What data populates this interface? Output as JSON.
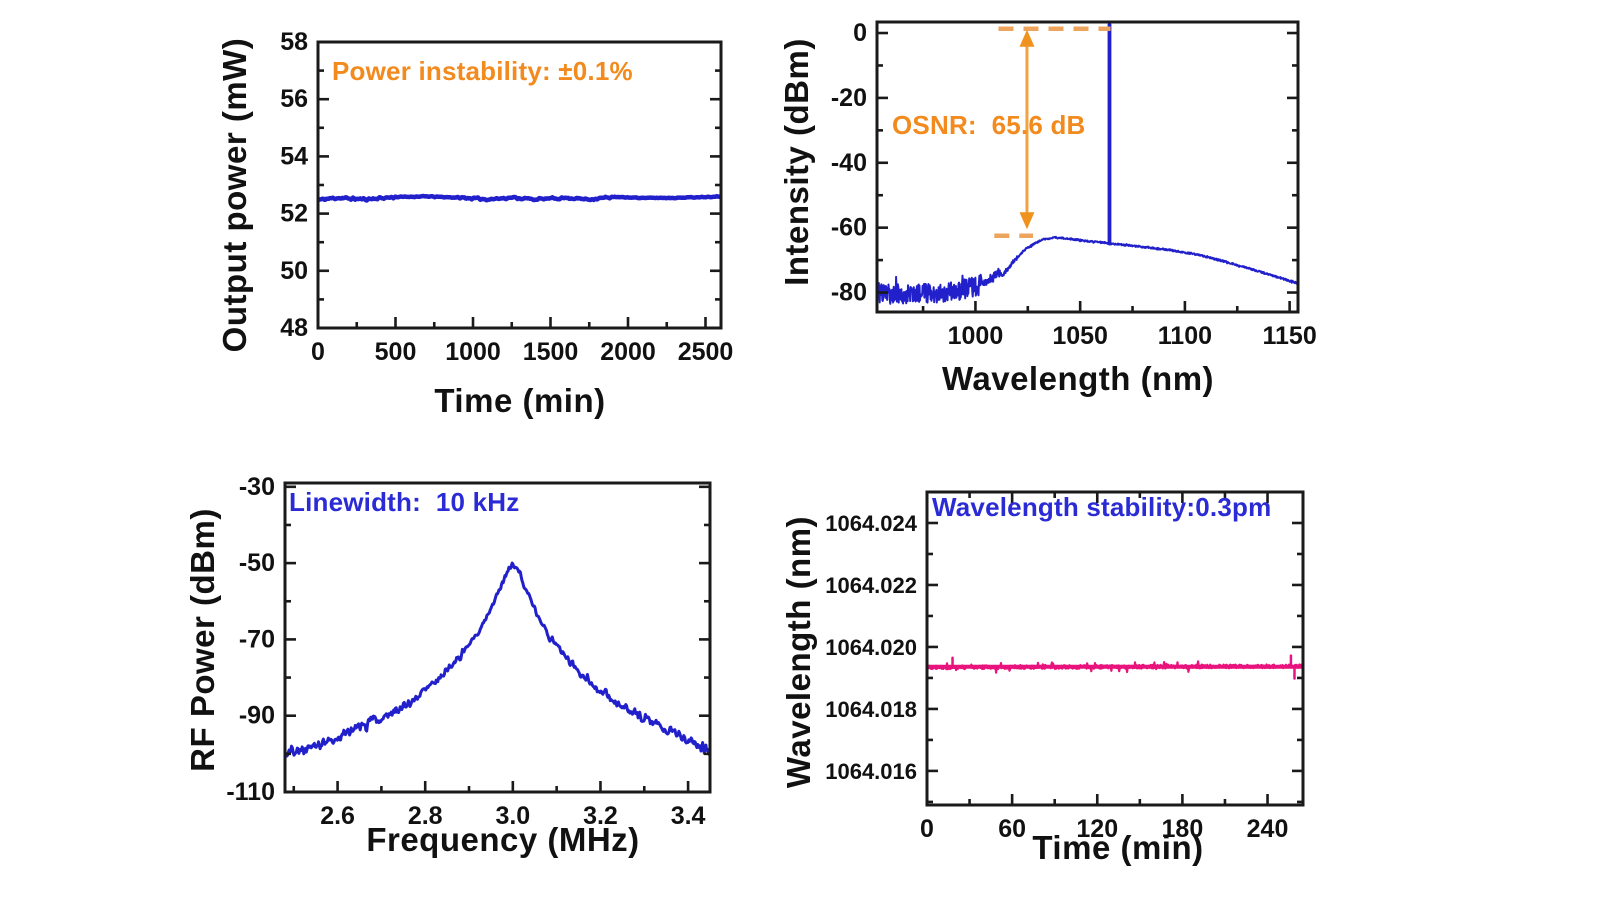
{
  "figure": {
    "background": "#ffffff",
    "frame_color": "#1a1a1a",
    "tick_label_color": "#111111"
  },
  "chart_data": [
    {
      "id": "output-power-stability",
      "type": "line",
      "xlabel": "Time (min)",
      "ylabel": "Output power (mW)",
      "annotation": {
        "text": "Power instability: ±0.1%",
        "color": "#f28a1d"
      },
      "xlim": [
        0,
        2600
      ],
      "ylim": [
        48,
        58
      ],
      "xticks": [
        0,
        500,
        1000,
        1500,
        2000,
        2500
      ],
      "xtick_labels": [
        "0",
        "500",
        "1000",
        "1500",
        "2000",
        "2500"
      ],
      "yticks": [
        48,
        50,
        52,
        54,
        56,
        58
      ],
      "ytick_labels": [
        "48",
        "50",
        "52",
        "54",
        "56",
        "58"
      ],
      "x_minor_step": 250,
      "y_minor_step": 1,
      "series": [
        {
          "name": "output-power",
          "color": "#2120cb",
          "width": 4.5,
          "seed": 11,
          "samples": 380,
          "smooth": true,
          "anchors": [
            [
              0,
              52.48
            ],
            [
              120,
              52.55
            ],
            [
              300,
              52.5
            ],
            [
              500,
              52.58
            ],
            [
              700,
              52.6
            ],
            [
              950,
              52.55
            ],
            [
              1100,
              52.5
            ],
            [
              1250,
              52.56
            ],
            [
              1400,
              52.5
            ],
            [
              1600,
              52.55
            ],
            [
              1750,
              52.5
            ],
            [
              1900,
              52.58
            ],
            [
              2100,
              52.55
            ],
            [
              2300,
              52.55
            ],
            [
              2600,
              52.6
            ]
          ],
          "noise_zones": [
            {
              "to_x": 500,
              "amp": 0.055
            },
            {
              "to_x": 900,
              "amp": 0.02
            },
            {
              "to_x": 1900,
              "amp": 0.045
            },
            {
              "to_x": 2600,
              "amp": 0.015
            }
          ]
        }
      ]
    },
    {
      "id": "optical-spectrum-osnr",
      "type": "line",
      "xlabel": "Wavelength (nm)",
      "ylabel": "Intensity (dBm)",
      "annotation": {
        "text": "OSNR:  65.6 dB",
        "color": "#f28a1d"
      },
      "xlim": [
        953,
        1154
      ],
      "ylim": [
        -86,
        3.4
      ],
      "xticks": [
        1000,
        1050,
        1100,
        1150
      ],
      "xtick_labels": [
        "1000",
        "1050",
        "1100",
        "1150"
      ],
      "yticks": [
        0,
        -20,
        -40,
        -60,
        -80
      ],
      "ytick_labels": [
        "0",
        "-20",
        "-40",
        "-60",
        "-80"
      ],
      "x_minor_step": 25,
      "y_minor_step": 10,
      "series": [
        {
          "name": "ase-spectrum",
          "color": "#2120cb",
          "width": 2,
          "seed": 23,
          "samples": 950,
          "smooth": false,
          "spike_prob": 0.06,
          "spike_mult": 1.7,
          "anchors": [
            [
              953,
              -80.5
            ],
            [
              970,
              -80.3
            ],
            [
              990,
              -79.8
            ],
            [
              1003,
              -77.5
            ],
            [
              1008,
              -75.5
            ],
            [
              1011,
              -73.5
            ],
            [
              1013,
              -74.8
            ],
            [
              1018,
              -70.5
            ],
            [
              1024,
              -66.5
            ],
            [
              1032,
              -63.6
            ],
            [
              1038,
              -63.1
            ],
            [
              1046,
              -63.5
            ],
            [
              1054,
              -64.2
            ],
            [
              1061,
              -64.6
            ],
            [
              1064,
              -64.9
            ],
            [
              1068,
              -65.1
            ],
            [
              1078,
              -65.8
            ],
            [
              1092,
              -66.8
            ],
            [
              1106,
              -68.3
            ],
            [
              1120,
              -70.6
            ],
            [
              1134,
              -73.2
            ],
            [
              1146,
              -75.6
            ],
            [
              1154,
              -77.2
            ]
          ],
          "noise_zones": [
            {
              "to_x": 1003,
              "amp": 3.1
            },
            {
              "to_x": 1012,
              "amp": 1.0
            },
            {
              "to_x": 1020,
              "amp": 0.6
            },
            {
              "to_x": 1154,
              "amp": 0.25
            }
          ]
        }
      ],
      "laser_peak": {
        "x": 1064,
        "base": -64.9,
        "top": 2.6,
        "width": 3.8
      },
      "osnr_marks": {
        "osnr_value_db": 65.6,
        "dash_color": "#eda55e",
        "arrow_color": "#f0921e",
        "dash_top": {
          "y": 1.3,
          "x1": 1011,
          "x2": 1064.5
        },
        "dash_bottom": {
          "y": -62.5,
          "x1": 1009,
          "x2": 1027.5
        },
        "arrow": {
          "x": 1024.6,
          "y1": -60.5,
          "y2": 1.0
        }
      }
    },
    {
      "id": "rf-beat-note-linewidth",
      "type": "line",
      "xlabel": "Frequency (MHz)",
      "ylabel": "RF Power (dBm)",
      "annotation": {
        "text": "Linewidth:  10 kHz",
        "color": "#2b2bd5"
      },
      "xlim": [
        2.48,
        3.45
      ],
      "ylim": [
        -110,
        -29
      ],
      "xticks": [
        2.6,
        2.8,
        3.0,
        3.2,
        3.4
      ],
      "xtick_labels": [
        "2.6",
        "2.8",
        "3.0",
        "3.2",
        "3.4"
      ],
      "yticks": [
        -30,
        -50,
        -70,
        -90,
        -110
      ],
      "ytick_labels": [
        "-30",
        "-50",
        "-70",
        "-90",
        "-110"
      ],
      "x_minor_step": 0.1,
      "y_minor_step": 10,
      "series": [
        {
          "name": "rf-spectrum",
          "color": "#2120cb",
          "width": 3,
          "seed": 37,
          "samples": 520,
          "smooth": true,
          "spike_prob": 0.05,
          "spike_mult": 1.8,
          "anchors": [
            [
              2.48,
              -99.5
            ],
            [
              2.52,
              -99
            ],
            [
              2.56,
              -97
            ],
            [
              2.6,
              -95.5
            ],
            [
              2.64,
              -93.5
            ],
            [
              2.68,
              -91.5
            ],
            [
              2.72,
              -89.5
            ],
            [
              2.76,
              -87
            ],
            [
              2.8,
              -83.5
            ],
            [
              2.84,
              -79.5
            ],
            [
              2.88,
              -74.5
            ],
            [
              2.92,
              -68.5
            ],
            [
              2.95,
              -62
            ],
            [
              2.97,
              -57
            ],
            [
              2.99,
              -51.5
            ],
            [
              3.0,
              -50
            ],
            [
              3.01,
              -51.5
            ],
            [
              3.03,
              -57
            ],
            [
              3.05,
              -62
            ],
            [
              3.08,
              -68.5
            ],
            [
              3.12,
              -74.5
            ],
            [
              3.16,
              -79.5
            ],
            [
              3.2,
              -83.5
            ],
            [
              3.24,
              -87
            ],
            [
              3.28,
              -89.5
            ],
            [
              3.32,
              -91.5
            ],
            [
              3.36,
              -94
            ],
            [
              3.4,
              -96.5
            ],
            [
              3.45,
              -99.5
            ]
          ],
          "noise_zones": [
            {
              "to_x": 2.7,
              "amp": 1.5
            },
            {
              "to_x": 2.9,
              "amp": 1.1
            },
            {
              "to_x": 3.08,
              "amp": 0.85
            },
            {
              "to_x": 3.28,
              "amp": 1.1
            },
            {
              "to_x": 3.45,
              "amp": 1.5
            }
          ]
        }
      ]
    },
    {
      "id": "wavelength-stability",
      "type": "line",
      "xlabel": "Time (min)",
      "ylabel": "Wavelength (nm)",
      "annotation": {
        "text": "Wavelength stability:0.3pm",
        "color": "#2b2bd5"
      },
      "xlim": [
        0,
        265
      ],
      "ylim": [
        1064.0149,
        1064.025
      ],
      "xticks": [
        0,
        60,
        120,
        180,
        240
      ],
      "xtick_labels": [
        "0",
        "60",
        "120",
        "180",
        "240"
      ],
      "yticks": [
        1064.016,
        1064.018,
        1064.02,
        1064.022,
        1064.024
      ],
      "ytick_labels": [
        "1064.016",
        "1064.018",
        "1064.020",
        "1064.022",
        "1064.024"
      ],
      "x_minor_step": 30,
      "y_minor_step": 0.001,
      "ticks_on_top": true,
      "series": [
        {
          "name": "wavelength-trace",
          "color": "#e8137c",
          "width": 2.2,
          "seed": 51,
          "samples": 620,
          "smooth": false,
          "spike_prob": 0.05,
          "spike_mult": 3,
          "anchors": [
            [
              0,
              1064.01934
            ],
            [
              265,
              1064.01938
            ]
          ],
          "noise_zones": [
            {
              "to_x": 265,
              "amp": 6e-05
            }
          ]
        }
      ],
      "baseline": {
        "value": 1064.01936,
        "width": 4
      },
      "spikes": [
        {
          "x": 18,
          "y": 1064.01965
        },
        {
          "x": 256.5,
          "y": 1064.01972
        },
        {
          "x": 259,
          "y": 1064.01898
        }
      ]
    }
  ]
}
